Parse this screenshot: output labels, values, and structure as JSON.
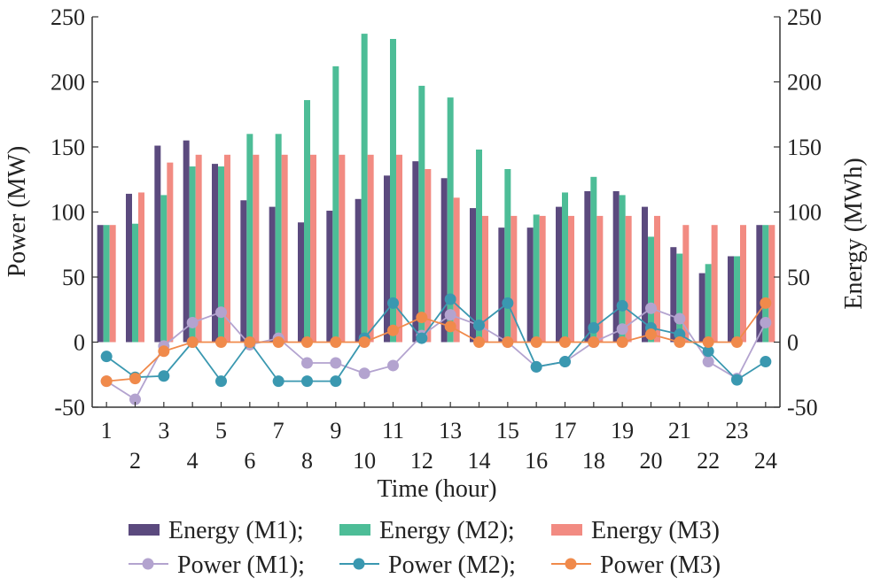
{
  "chart_data": {
    "type": "bar",
    "xlabel": "Time (hour)",
    "ylabel_left": "Power (MW)",
    "ylabel_right": "Energy (MWh)",
    "ylim_left": [
      -50,
      250
    ],
    "ylim_right": [
      -50,
      250
    ],
    "yticks": [
      -50,
      0,
      50,
      100,
      150,
      200,
      250
    ],
    "categories": [
      "1",
      "2",
      "3",
      "4",
      "5",
      "6",
      "7",
      "8",
      "9",
      "10",
      "11",
      "12",
      "13",
      "14",
      "15",
      "16",
      "17",
      "18",
      "19",
      "20",
      "21",
      "22",
      "23",
      "24"
    ],
    "legend_position": "bottom",
    "bar_series": [
      {
        "name": "Energy (M1);",
        "color": "#5b4a7e",
        "values": [
          90,
          114,
          151,
          155,
          137,
          109,
          104,
          92,
          101,
          110,
          128,
          139,
          126,
          103,
          88,
          88,
          104,
          116,
          116,
          104,
          73,
          53,
          66,
          90
        ]
      },
      {
        "name": "Energy (M2);",
        "color": "#4dbd97",
        "values": [
          90,
          91,
          113,
          135,
          135,
          160,
          160,
          186,
          212,
          237,
          233,
          197,
          188,
          148,
          133,
          98,
          115,
          127,
          113,
          81,
          68,
          60,
          66,
          90
        ]
      },
      {
        "name": "Energy (M3)",
        "color": "#f28b82",
        "values": [
          90,
          115,
          138,
          144,
          144,
          144,
          144,
          144,
          144,
          144,
          144,
          133,
          111,
          97,
          97,
          97,
          97,
          97,
          97,
          97,
          90,
          90,
          90,
          90
        ]
      }
    ],
    "line_series": [
      {
        "name": "Power (M1);",
        "color": "#b3a3cf",
        "values": [
          -30,
          -44,
          -3,
          15,
          23,
          -2,
          3,
          -16,
          -16,
          -24,
          -18,
          5,
          21,
          13,
          0,
          -19,
          -15,
          0,
          10,
          26,
          18,
          -15,
          -28,
          15
        ]
      },
      {
        "name": "Power (M2);",
        "color": "#3a98b0",
        "values": [
          -11,
          -27,
          -26,
          0,
          -30,
          0,
          -30,
          -30,
          -30,
          3,
          30,
          3,
          33,
          13,
          30,
          -19,
          -15,
          11,
          28,
          11,
          6,
          -7,
          -29,
          -15
        ]
      },
      {
        "name": "Power (M3)",
        "color": "#f08a4b",
        "values": [
          -30,
          -28,
          -7,
          0,
          0,
          0,
          0,
          0,
          0,
          0,
          9,
          19,
          12,
          0,
          0,
          0,
          0,
          0,
          0,
          6,
          0,
          0,
          0,
          30
        ]
      }
    ]
  }
}
